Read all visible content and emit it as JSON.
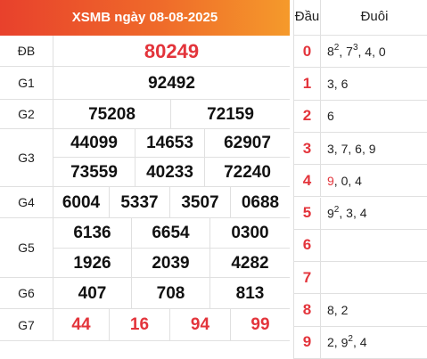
{
  "header": {
    "title": "XSMB ngày 08-08-2025"
  },
  "prizes": {
    "db": {
      "label": "ĐB",
      "numbers": [
        "80249"
      ]
    },
    "g1": {
      "label": "G1",
      "numbers": [
        "92492"
      ]
    },
    "g2": {
      "label": "G2",
      "numbers": [
        "75208",
        "72159"
      ]
    },
    "g3": {
      "label": "G3",
      "numbers": [
        "44099",
        "14653",
        "62907",
        "73559",
        "40233",
        "72240"
      ]
    },
    "g4": {
      "label": "G4",
      "numbers": [
        "6004",
        "5337",
        "3507",
        "0688"
      ]
    },
    "g5": {
      "label": "G5",
      "numbers": [
        "6136",
        "6654",
        "0300",
        "1926",
        "2039",
        "4282"
      ]
    },
    "g6": {
      "label": "G6",
      "numbers": [
        "407",
        "708",
        "813"
      ]
    },
    "g7": {
      "label": "G7",
      "numbers": [
        "44",
        "16",
        "94",
        "99"
      ]
    }
  },
  "loto": {
    "head_label": "Đầu",
    "tail_label": "Đuôi",
    "rows": [
      {
        "head": "0",
        "tails": [
          {
            "v": "8",
            "sup": "2"
          },
          {
            "v": "7",
            "sup": "3"
          },
          {
            "v": "4"
          },
          {
            "v": "0"
          }
        ]
      },
      {
        "head": "1",
        "tails": [
          {
            "v": "3"
          },
          {
            "v": "6"
          }
        ]
      },
      {
        "head": "2",
        "tails": [
          {
            "v": "6"
          }
        ]
      },
      {
        "head": "3",
        "tails": [
          {
            "v": "3"
          },
          {
            "v": "7"
          },
          {
            "v": "6"
          },
          {
            "v": "9"
          }
        ]
      },
      {
        "head": "4",
        "tails": [
          {
            "v": "9",
            "red": true
          },
          {
            "v": "0"
          },
          {
            "v": "4"
          }
        ]
      },
      {
        "head": "5",
        "tails": [
          {
            "v": "9",
            "sup": "2"
          },
          {
            "v": "3"
          },
          {
            "v": "4"
          }
        ]
      },
      {
        "head": "6",
        "tails": []
      },
      {
        "head": "7",
        "tails": []
      },
      {
        "head": "8",
        "tails": [
          {
            "v": "8"
          },
          {
            "v": "2"
          }
        ]
      },
      {
        "head": "9",
        "tails": [
          {
            "v": "2"
          },
          {
            "v": "9",
            "sup": "2"
          },
          {
            "v": "4"
          }
        ]
      }
    ]
  },
  "colors": {
    "accent": "#e3343b",
    "header_gradient_start": "#e8412c",
    "header_gradient_end": "#f59a2b"
  }
}
